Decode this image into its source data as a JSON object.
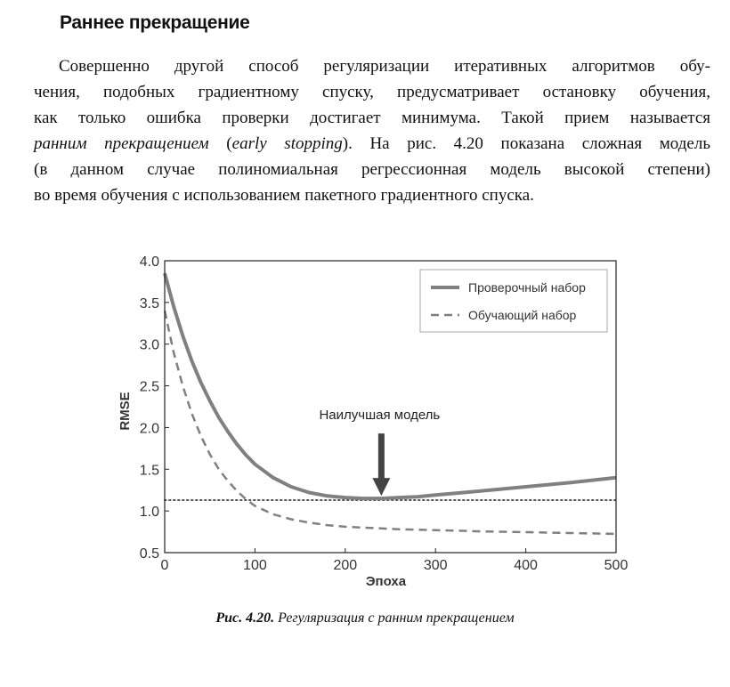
{
  "section": {
    "heading": "Раннее прекращение",
    "lines": [
      "Совершенно другой способ регуляризации итеративных алгоритмов обу-",
      "чения, подобных градиентному спуску, предусматривает остановку обучения,",
      "как только ошибка проверки достигает минимума. Такой прием называется",
      [
        "ранним прекращением",
        " (",
        "early stopping",
        "). На рис. 4.20 показана сложная модель"
      ],
      "(в данном случае полиномиальная регрессионная модель высокой степени)",
      "во время обучения с использованием пакетного градиентного спуска."
    ]
  },
  "figure": {
    "caption_label": "Рис. 4.20.",
    "caption_text": "Регуляризация с ранним прекращением"
  },
  "chart_data": {
    "type": "line",
    "xlabel": "Эпоха",
    "ylabel": "RMSE",
    "xlim": [
      0,
      500
    ],
    "ylim": [
      0.5,
      4.0
    ],
    "x_ticks": [
      "0",
      "100",
      "200",
      "300",
      "400",
      "500"
    ],
    "y_ticks": [
      "0.5",
      "1.0",
      "1.5",
      "2.0",
      "2.5",
      "3.0",
      "3.5",
      "4.0"
    ],
    "legend_position": "top-right",
    "grid": false,
    "series": [
      {
        "name": "Проверочный набор",
        "style": "solid",
        "color": "#808080",
        "x": [
          0,
          10,
          20,
          30,
          40,
          50,
          60,
          70,
          80,
          90,
          100,
          120,
          140,
          160,
          180,
          200,
          220,
          240,
          260,
          280,
          300,
          350,
          400,
          450,
          500
        ],
        "y": [
          3.85,
          3.45,
          3.1,
          2.8,
          2.54,
          2.32,
          2.12,
          1.95,
          1.8,
          1.67,
          1.56,
          1.4,
          1.29,
          1.22,
          1.18,
          1.16,
          1.15,
          1.15,
          1.16,
          1.17,
          1.19,
          1.24,
          1.29,
          1.34,
          1.4
        ]
      },
      {
        "name": "Обучающий набор",
        "style": "dashed",
        "color": "#808080",
        "x": [
          0,
          10,
          20,
          30,
          40,
          50,
          60,
          70,
          80,
          90,
          100,
          120,
          140,
          160,
          180,
          200,
          220,
          240,
          260,
          280,
          300,
          350,
          400,
          450,
          500
        ],
        "y": [
          3.4,
          2.9,
          2.5,
          2.17,
          1.9,
          1.68,
          1.5,
          1.36,
          1.24,
          1.14,
          1.06,
          0.96,
          0.9,
          0.86,
          0.83,
          0.81,
          0.8,
          0.79,
          0.78,
          0.775,
          0.77,
          0.755,
          0.745,
          0.735,
          0.725
        ]
      }
    ],
    "reference_line": {
      "y": 1.13,
      "style": "dotted",
      "color": "#555555"
    },
    "annotation": {
      "text": "Наилучшая модель",
      "x": 240,
      "y": 1.15,
      "color": "#444444"
    }
  }
}
